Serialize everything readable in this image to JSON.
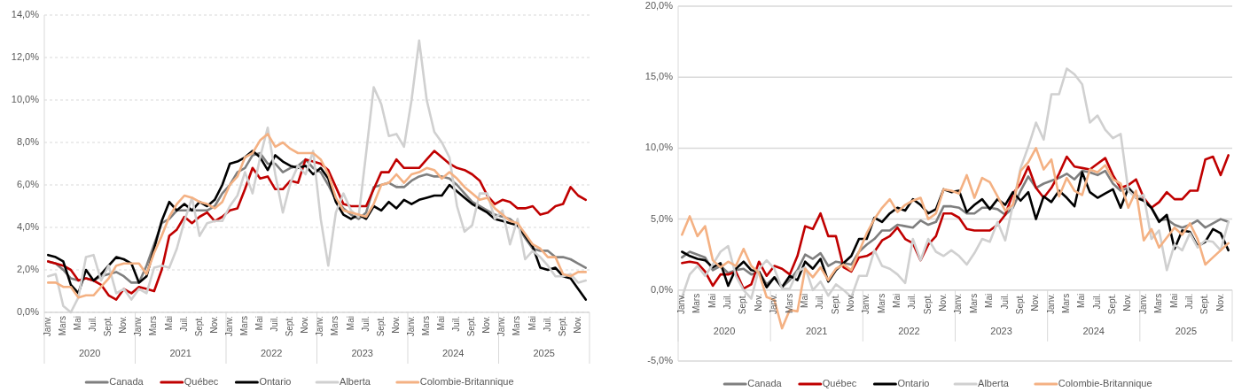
{
  "chart_data": [
    {
      "type": "line",
      "categories": [
        "Janv.",
        null,
        "Mars",
        null,
        "Mai",
        null,
        "Juil.",
        null,
        "Sept.",
        null,
        "Nov.",
        null,
        "Janv.",
        null,
        "Mars",
        null,
        "Mai",
        null,
        "Juil.",
        null,
        "Sept.",
        null,
        "Nov.",
        null,
        "Janv.",
        null,
        "Mars",
        null,
        "Mai",
        null,
        "Juil.",
        null,
        "Sept.",
        null,
        "Nov.",
        null,
        "Janv.",
        null,
        "Mars",
        null,
        "Mai",
        null,
        "Juil.",
        null,
        "Sept.",
        null,
        "Nov.",
        null,
        "Janv.",
        null,
        "Mars",
        null,
        "Mai",
        null,
        "Juil.",
        null,
        "Sept.",
        null,
        "Nov.",
        null,
        "Janv.",
        null,
        "Mars",
        null,
        "Mai",
        null,
        "Juil.",
        null,
        "Sept.",
        null,
        "Nov.",
        null
      ],
      "annotations": [
        "2020",
        "2021",
        "2022",
        "2023",
        "2024",
        "2025"
      ],
      "ylim": [
        0,
        14
      ],
      "yticks": [
        {
          "value": 0,
          "label": "0,0%"
        },
        {
          "value": 2,
          "label": "2,0%"
        },
        {
          "value": 4,
          "label": "4,0%"
        },
        {
          "value": 6,
          "label": "6,0%"
        },
        {
          "value": 8,
          "label": "8,0%"
        },
        {
          "value": 10,
          "label": "10,0%"
        },
        {
          "value": 12,
          "label": "12,0%"
        },
        {
          "value": 14,
          "label": "14,0%"
        }
      ],
      "grid": "y",
      "legend": "bottom",
      "line_style": "solid",
      "series": [
        {
          "name": "Canada",
          "color": "#7f7f7f",
          "values": [
            2.4,
            2.3,
            2.0,
            1.6,
            1.5,
            1.6,
            1.5,
            1.7,
            1.8,
            1.9,
            1.7,
            1.4,
            1.4,
            2.2,
            3.2,
            4.2,
            4.4,
            4.8,
            4.8,
            4.8,
            4.8,
            4.8,
            5.0,
            5.6,
            6.0,
            6.6,
            6.8,
            7.4,
            7.5,
            7.0,
            7.0,
            6.6,
            6.8,
            6.9,
            7.2,
            6.8,
            6.6,
            6.0,
            5.3,
            4.9,
            4.6,
            4.4,
            4.7,
            5.9,
            6.0,
            6.1,
            5.9,
            5.9,
            6.2,
            6.4,
            6.5,
            6.4,
            6.4,
            6.3,
            6.0,
            5.6,
            5.2,
            5.0,
            4.8,
            4.6,
            4.5,
            4.4,
            4.1,
            3.5,
            3.0,
            2.9,
            2.9,
            2.6,
            2.6,
            2.5,
            2.3,
            2.1
          ]
        },
        {
          "name": "Québec",
          "color": "#c00000",
          "values": [
            2.4,
            2.3,
            2.2,
            2.0,
            1.5,
            1.6,
            1.5,
            1.3,
            0.8,
            0.6,
            1.1,
            0.9,
            1.2,
            1.1,
            1.0,
            2.0,
            3.6,
            3.9,
            4.5,
            4.2,
            4.5,
            4.7,
            4.3,
            4.5,
            4.8,
            4.9,
            5.8,
            6.8,
            6.3,
            6.4,
            5.8,
            5.8,
            6.2,
            6.1,
            7.2,
            7.1,
            7.0,
            6.7,
            5.9,
            5.1,
            5.0,
            5.0,
            5.0,
            5.8,
            6.6,
            6.6,
            7.2,
            6.8,
            6.8,
            6.8,
            7.2,
            7.6,
            7.3,
            7.0,
            6.8,
            6.7,
            6.5,
            6.2,
            5.5,
            5.1,
            5.3,
            5.2,
            4.9,
            4.9,
            5.0,
            4.6,
            4.7,
            5.0,
            5.1,
            5.9,
            5.5,
            5.3
          ]
        },
        {
          "name": "Ontario",
          "color": "#000000",
          "values": [
            2.7,
            2.6,
            2.4,
            1.3,
            0.9,
            2.0,
            1.5,
            1.8,
            2.2,
            2.6,
            2.5,
            2.3,
            1.4,
            1.7,
            3.0,
            4.3,
            5.2,
            4.8,
            5.1,
            4.8,
            5.2,
            5.0,
            5.3,
            6.0,
            7.0,
            7.1,
            7.3,
            7.6,
            7.3,
            6.7,
            7.4,
            7.1,
            6.9,
            6.8,
            6.9,
            6.5,
            6.8,
            6.3,
            5.2,
            4.6,
            4.4,
            4.6,
            4.4,
            5.0,
            4.8,
            5.2,
            4.9,
            5.3,
            5.1,
            5.3,
            5.4,
            5.5,
            5.5,
            6.0,
            5.7,
            5.4,
            5.1,
            4.9,
            4.7,
            4.4,
            4.3,
            4.2,
            4.1,
            3.6,
            3.1,
            2.1,
            2.0,
            2.1,
            1.7,
            1.6,
            1.1,
            0.6
          ]
        },
        {
          "name": "Alberta",
          "color": "#d0d0d0",
          "values": [
            1.7,
            1.8,
            0.3,
            0.0,
            0.7,
            2.6,
            2.7,
            1.5,
            2.2,
            0.9,
            1.1,
            0.6,
            1.1,
            0.9,
            2.1,
            2.2,
            2.1,
            3.0,
            4.3,
            5.4,
            3.6,
            4.2,
            4.3,
            4.3,
            5.0,
            5.5,
            6.6,
            5.6,
            7.3,
            8.7,
            6.5,
            4.7,
            6.1,
            6.9,
            6.5,
            7.6,
            4.4,
            2.2,
            4.7,
            5.6,
            4.8,
            4.5,
            7.5,
            10.6,
            9.8,
            8.3,
            8.4,
            7.8,
            10.0,
            12.8,
            10.0,
            8.5,
            8.0,
            7.3,
            5.0,
            3.8,
            4.1,
            5.6,
            5.6,
            4.4,
            4.8,
            3.2,
            4.4,
            2.5,
            2.9,
            2.6,
            2.2,
            1.7,
            1.7,
            1.8,
            1.4,
            1.5
          ]
        },
        {
          "name": "Colombie-Britannique",
          "color": "#f4b183",
          "values": [
            1.4,
            1.4,
            1.2,
            1.2,
            0.7,
            0.8,
            0.8,
            1.2,
            1.6,
            2.2,
            2.3,
            2.3,
            2.3,
            1.8,
            2.8,
            3.6,
            4.5,
            5.1,
            5.5,
            5.4,
            5.2,
            5.1,
            4.9,
            5.2,
            6.0,
            6.4,
            7.3,
            7.5,
            8.1,
            8.4,
            7.8,
            8.0,
            7.7,
            7.5,
            7.5,
            7.5,
            7.2,
            6.5,
            5.4,
            4.8,
            4.7,
            4.6,
            4.5,
            5.1,
            6.0,
            6.1,
            6.5,
            6.1,
            6.5,
            6.6,
            6.8,
            6.7,
            6.3,
            6.6,
            6.3,
            5.9,
            5.6,
            5.3,
            5.4,
            4.9,
            4.6,
            4.3,
            4.2,
            3.7,
            3.2,
            3.0,
            2.6,
            2.6,
            1.8,
            1.7,
            1.9,
            1.9
          ]
        }
      ]
    },
    {
      "type": "line",
      "categories": [
        "Janv.",
        null,
        "Mars",
        null,
        "Mai",
        null,
        "Juil.",
        null,
        "Sept.",
        null,
        "Nov.",
        null,
        "Janv.",
        null,
        "Mars",
        null,
        "Mai",
        null,
        "Juil.",
        null,
        "Sept.",
        null,
        "Nov.",
        null,
        "Janv.",
        null,
        "Mars",
        null,
        "Mai",
        null,
        "Juil.",
        null,
        "Sept.",
        null,
        "Nov.",
        null,
        "Janv.",
        null,
        "Mars",
        null,
        "Mai",
        null,
        "Juil.",
        null,
        "Sept.",
        null,
        "Nov.",
        null,
        "Janv.",
        null,
        "Mars",
        null,
        "Mai",
        null,
        "Juil.",
        null,
        "Sept.",
        null,
        "Nov.",
        null,
        "Janv.",
        null,
        "Mars",
        null,
        "Mai",
        null,
        "Juil.",
        null,
        "Sept.",
        null,
        "Nov.",
        null
      ],
      "annotations": [
        "2020",
        "2021",
        "2022",
        "2023",
        "2024",
        "2025"
      ],
      "ylim": [
        -5,
        20
      ],
      "yticks": [
        {
          "value": -5,
          "label": "-5,0%"
        },
        {
          "value": 0,
          "label": "0,0%"
        },
        {
          "value": 5,
          "label": "5,0%"
        },
        {
          "value": 10,
          "label": "10,0%"
        },
        {
          "value": 15,
          "label": "15,0%"
        },
        {
          "value": 20,
          "label": "20,0%"
        }
      ],
      "grid": "y",
      "legend": "bottom",
      "line_style": "solid",
      "series": [
        {
          "name": "Canada",
          "color": "#7f7f7f",
          "values": [
            2.3,
            2.7,
            2.5,
            2.3,
            1.4,
            1.7,
            1.2,
            1.4,
            1.5,
            1.1,
            1.3,
            0.4,
            0.9,
            0.2,
            0.7,
            1.4,
            2.5,
            2.2,
            2.6,
            1.7,
            2.0,
            1.9,
            1.8,
            2.7,
            3.2,
            3.6,
            4.2,
            4.2,
            4.6,
            4.5,
            4.4,
            4.9,
            4.6,
            4.8,
            5.9,
            5.9,
            5.8,
            5.4,
            5.4,
            5.8,
            5.8,
            5.7,
            5.3,
            5.8,
            7.0,
            8.0,
            7.2,
            7.5,
            7.7,
            7.9,
            8.2,
            7.8,
            8.4,
            8.3,
            8.1,
            8.4,
            7.5,
            7.0,
            7.2,
            6.7,
            6.3,
            5.8,
            4.9,
            5.0,
            4.6,
            4.4,
            4.6,
            4.9,
            4.4,
            4.7,
            5.0,
            4.8
          ]
        },
        {
          "name": "Québec",
          "color": "#c00000",
          "values": [
            1.9,
            2.0,
            1.9,
            1.3,
            0.3,
            1.1,
            1.1,
            1.3,
            0.1,
            0.4,
            2.0,
            1.0,
            1.7,
            1.5,
            1.1,
            2.4,
            4.5,
            4.3,
            5.4,
            3.8,
            3.8,
            1.6,
            1.3,
            2.3,
            2.4,
            2.7,
            3.5,
            3.8,
            4.4,
            3.6,
            3.3,
            2.1,
            3.2,
            3.8,
            5.4,
            5.4,
            5.1,
            4.3,
            4.2,
            4.2,
            4.2,
            4.6,
            5.3,
            6.8,
            7.5,
            8.7,
            7.2,
            6.5,
            7.2,
            8.2,
            9.4,
            8.7,
            8.6,
            8.5,
            8.9,
            9.3,
            8.1,
            7.2,
            7.4,
            7.8,
            6.5,
            5.8,
            6.2,
            6.9,
            6.4,
            6.4,
            7.0,
            7.0,
            9.2,
            9.4,
            8.1,
            9.5
          ]
        },
        {
          "name": "Ontario",
          "color": "#000000",
          "values": [
            2.7,
            2.4,
            2.2,
            2.1,
            1.6,
            1.9,
            0.3,
            1.5,
            2.0,
            1.4,
            1.3,
            0.2,
            0.9,
            0.2,
            1.0,
            0.7,
            2.0,
            1.5,
            2.2,
            0.6,
            1.4,
            1.9,
            2.4,
            3.6,
            3.6,
            5.1,
            4.8,
            5.4,
            5.8,
            5.6,
            6.4,
            6.0,
            5.4,
            5.7,
            7.1,
            6.9,
            7.0,
            5.5,
            6.0,
            6.4,
            5.7,
            6.4,
            6.0,
            6.9,
            6.3,
            6.9,
            5.0,
            6.6,
            6.2,
            7.0,
            6.5,
            5.9,
            8.3,
            6.9,
            6.5,
            6.8,
            7.1,
            5.8,
            7.2,
            6.5,
            6.3,
            5.8,
            4.8,
            5.3,
            2.9,
            4.2,
            4.1,
            3.1,
            3.4,
            4.3,
            4.0,
            2.8
          ]
        },
        {
          "name": "Alberta",
          "color": "#d0d0d0",
          "values": [
            -0.5,
            1.1,
            1.7,
            1.0,
            1.8,
            2.7,
            3.1,
            1.0,
            0.0,
            -0.6,
            1.5,
            2.1,
            1.5,
            0.1,
            0.1,
            1.3,
            1.6,
            0.0,
            0.6,
            -0.4,
            0.4,
            0.0,
            -0.5,
            1.0,
            1.0,
            2.8,
            1.7,
            1.5,
            1.1,
            0.5,
            3.6,
            2.1,
            3.6,
            2.7,
            2.4,
            2.8,
            2.4,
            1.8,
            2.6,
            3.6,
            3.4,
            4.8,
            3.5,
            6.0,
            8.6,
            10.1,
            11.8,
            10.6,
            13.8,
            13.8,
            15.6,
            15.2,
            14.5,
            11.8,
            12.3,
            11.3,
            10.7,
            11.0,
            7.0,
            6.5,
            6.7,
            3.6,
            4.2,
            1.4,
            3.2,
            2.8,
            4.0,
            3.0,
            3.5,
            3.4,
            2.8,
            4.8
          ]
        },
        {
          "name": "Colombie-Britannique",
          "color": "#f4b183",
          "values": [
            3.9,
            5.2,
            3.8,
            4.5,
            2.1,
            1.6,
            2.0,
            1.7,
            2.9,
            1.7,
            1.2,
            -0.5,
            -0.7,
            -2.7,
            -1.4,
            -1.5,
            1.5,
            0.9,
            1.6,
            0.7,
            1.5,
            1.8,
            1.4,
            2.7,
            4.0,
            5.0,
            5.8,
            6.4,
            5.5,
            6.0,
            6.3,
            6.5,
            5.0,
            5.4,
            7.1,
            7.0,
            6.8,
            8.1,
            6.5,
            7.9,
            7.6,
            6.6,
            5.6,
            6.0,
            8.4,
            9.0,
            10.0,
            8.5,
            9.2,
            6.6,
            7.9,
            7.0,
            6.7,
            8.5,
            8.3,
            8.8,
            7.8,
            7.5,
            5.8,
            7.0,
            3.5,
            4.3,
            3.0,
            3.7,
            4.4,
            3.9,
            4.7,
            3.6,
            1.8,
            2.3,
            2.8,
            3.3
          ]
        }
      ]
    }
  ]
}
